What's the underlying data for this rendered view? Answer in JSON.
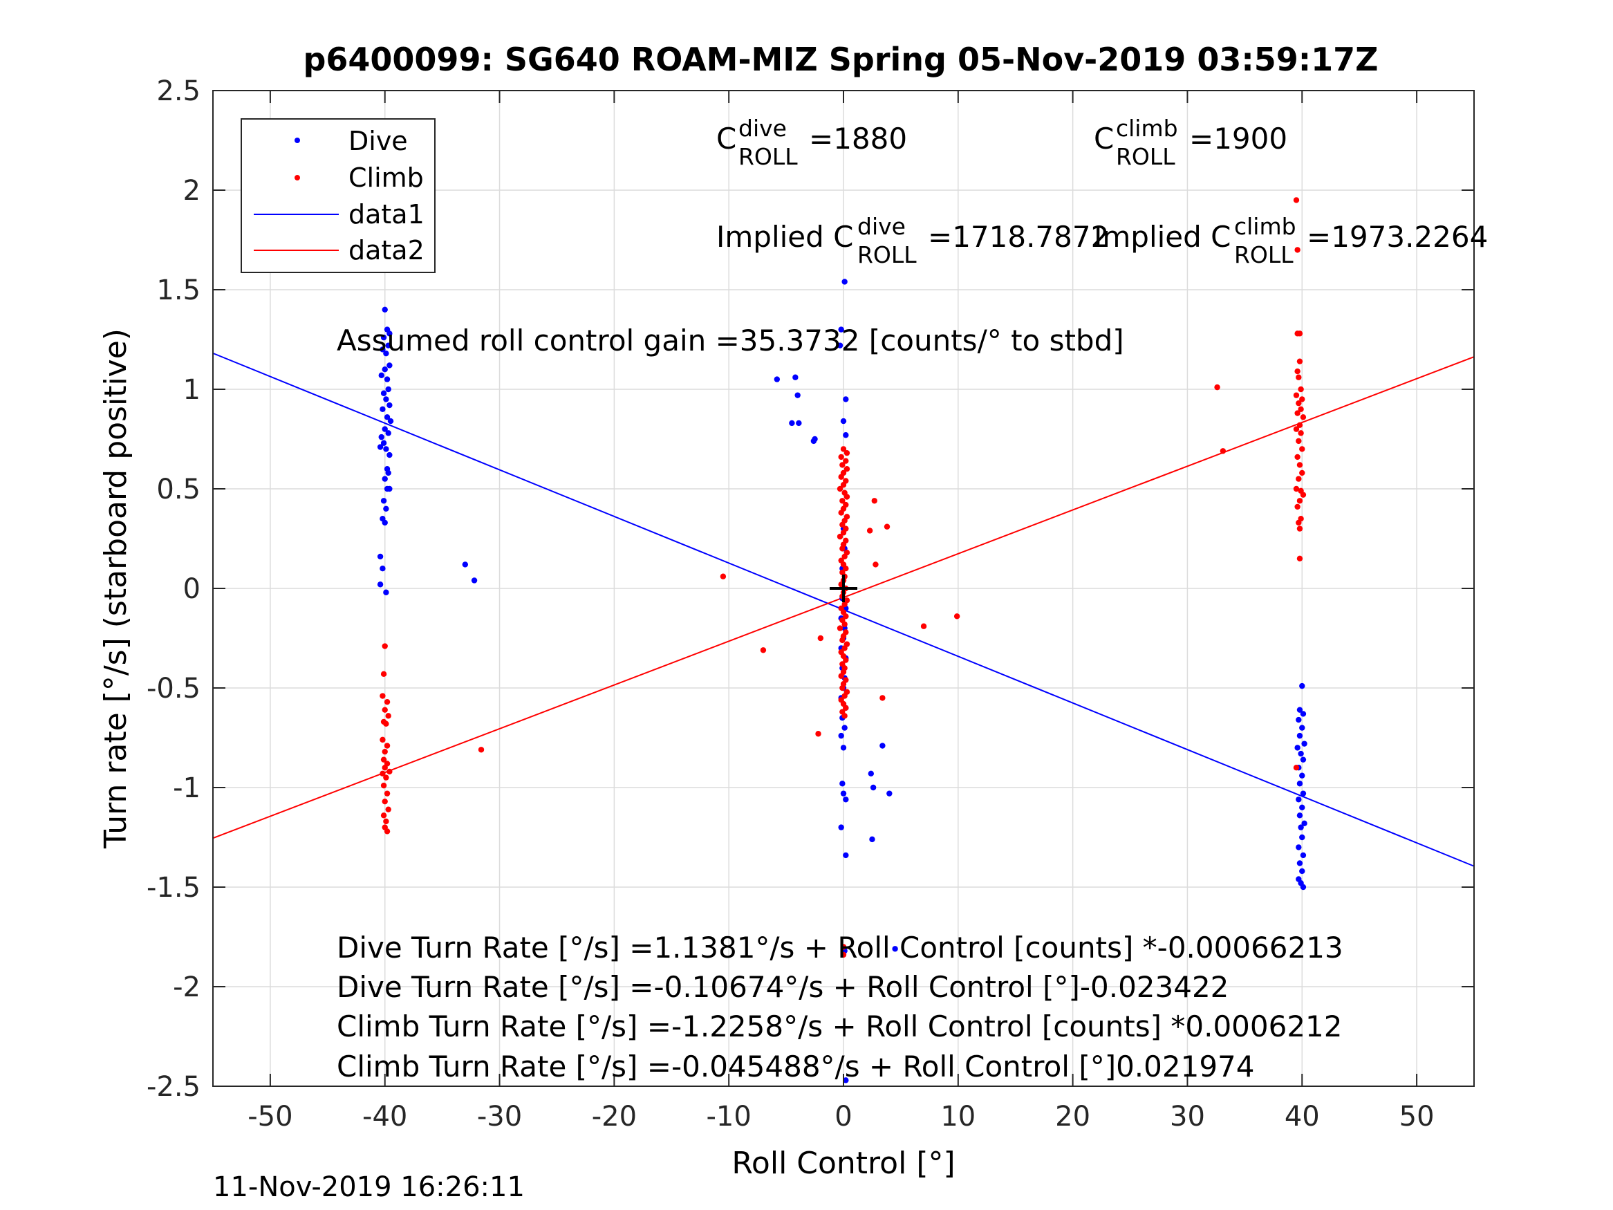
{
  "figure": {
    "title": "p6400099: SG640 ROAM-MIZ Spring 05-Nov-2019 03:59:17Z",
    "timestamp": "11-Nov-2019 16:26:11"
  },
  "annotations": {
    "c_roll_dive": {
      "base": "C",
      "sup": "dive",
      "sub": "ROLL",
      "value": "=1880"
    },
    "c_roll_climb": {
      "base": "C",
      "sup": "climb",
      "sub": "ROLL",
      "value": "=1900"
    },
    "implied_dive": {
      "prefix": "Implied C",
      "sup": "dive",
      "sub": "ROLL",
      "value": "=1718.7872"
    },
    "implied_climb": {
      "prefix": "Implied C",
      "sup": "climb",
      "sub": "ROLL",
      "value": "=1973.2264"
    },
    "gain": "Assumed roll control gain =35.3732 [counts/° to stbd]",
    "eq1": "Dive Turn Rate [°/s] =1.1381°/s + Roll Control [counts] *-0.00066213",
    "eq2": "Dive Turn Rate [°/s] =-0.10674°/s + Roll Control [°]-0.023422",
    "eq3": "Climb Turn Rate [°/s] =-1.2258°/s + Roll Control [counts] *0.0006212",
    "eq4": "Climb Turn Rate [°/s] =-0.045488°/s + Roll Control [°]0.021974"
  },
  "chart_data": {
    "type": "scatter",
    "title": "p6400099: SG640 ROAM-MIZ Spring 05-Nov-2019 03:59:17Z",
    "xlabel": "Roll Control [°]",
    "ylabel": "Turn rate [°/s] (starboard positive)",
    "xlim": [
      -55,
      55
    ],
    "ylim": [
      -2.5,
      2.5
    ],
    "xticks": [
      -50,
      -40,
      -30,
      -20,
      -10,
      0,
      10,
      20,
      30,
      40,
      50
    ],
    "yticks": [
      -2.5,
      -2,
      -1.5,
      -1,
      -0.5,
      0,
      0.5,
      1,
      1.5,
      2,
      2.5
    ],
    "xtick_labels": [
      "-50",
      "-40",
      "-30",
      "-20",
      "-10",
      "0",
      "10",
      "20",
      "30",
      "40",
      "50"
    ],
    "ytick_labels": [
      "-2.5",
      "-2",
      "-1.5",
      "-1",
      "-0.5",
      "0",
      "0.5",
      "1",
      "1.5",
      "2",
      "2.5"
    ],
    "grid": true,
    "legend": {
      "placement": "top-left",
      "entries": [
        "Dive",
        "Climb",
        "data1",
        "data2"
      ]
    },
    "colors": {
      "dive": "#0000ff",
      "climb": "#ff0000",
      "marker": "#000000",
      "grid": "#dcdcdc"
    },
    "center_marker": {
      "x": 0,
      "y": 0,
      "symbol": "+"
    },
    "series": [
      {
        "name": "Dive",
        "kind": "points",
        "color": "#0000ff",
        "points": [
          [
            -40,
            1.4
          ],
          [
            -39.8,
            1.3
          ],
          [
            -39.6,
            1.28
          ],
          [
            -40.1,
            1.26
          ],
          [
            -39.7,
            1.22
          ],
          [
            -40.2,
            1.2
          ],
          [
            -39.9,
            1.18
          ],
          [
            -39.6,
            1.12
          ],
          [
            -40.0,
            1.1
          ],
          [
            -39.8,
            1.05
          ],
          [
            -40.3,
            1.07
          ],
          [
            -39.7,
            1.0
          ],
          [
            -40.1,
            0.98
          ],
          [
            -39.9,
            0.95
          ],
          [
            -39.6,
            0.92
          ],
          [
            -40.2,
            0.9
          ],
          [
            -39.8,
            0.86
          ],
          [
            -39.5,
            0.84
          ],
          [
            -40.0,
            0.8
          ],
          [
            -39.7,
            0.78
          ],
          [
            -40.3,
            0.76
          ],
          [
            -40.1,
            0.73
          ],
          [
            -39.9,
            0.7
          ],
          [
            -40.4,
            0.71
          ],
          [
            -39.6,
            0.67
          ],
          [
            -39.8,
            0.6
          ],
          [
            -39.7,
            0.58
          ],
          [
            -40.0,
            0.55
          ],
          [
            -39.8,
            0.5
          ],
          [
            -39.6,
            0.5
          ],
          [
            -40.1,
            0.44
          ],
          [
            -39.9,
            0.4
          ],
          [
            -40.2,
            0.35
          ],
          [
            -40.0,
            0.33
          ],
          [
            -40.4,
            0.16
          ],
          [
            -40.2,
            0.1
          ],
          [
            -40.4,
            0.02
          ],
          [
            -39.9,
            -0.02
          ],
          [
            -33.0,
            0.12
          ],
          [
            -32.2,
            0.04
          ],
          [
            -5.8,
            1.05
          ],
          [
            -4.2,
            1.06
          ],
          [
            -4.0,
            0.97
          ],
          [
            -4.5,
            0.83
          ],
          [
            -3.9,
            0.83
          ],
          [
            -2.5,
            0.75
          ],
          [
            -2.6,
            0.74
          ],
          [
            -0.3,
            1.22
          ],
          [
            -0.2,
            1.3
          ],
          [
            0.1,
            1.54
          ],
          [
            0.2,
            0.95
          ],
          [
            0.0,
            0.84
          ],
          [
            0.2,
            0.77
          ],
          [
            0.0,
            0.3
          ],
          [
            0.1,
            0.2
          ],
          [
            -0.1,
            0.1
          ],
          [
            0.1,
            0.0
          ],
          [
            -0.1,
            -0.05
          ],
          [
            0.2,
            -0.1
          ],
          [
            -0.2,
            -0.15
          ],
          [
            0.1,
            -0.2
          ],
          [
            0.0,
            -0.25
          ],
          [
            -0.2,
            -0.3
          ],
          [
            0.2,
            -0.35
          ],
          [
            -0.1,
            -0.4
          ],
          [
            0.1,
            -0.45
          ],
          [
            0.0,
            -0.5
          ],
          [
            -0.2,
            -0.55
          ],
          [
            0.2,
            -0.6
          ],
          [
            -0.1,
            -0.65
          ],
          [
            0.1,
            -0.7
          ],
          [
            -0.2,
            -0.74
          ],
          [
            0.0,
            -0.8
          ],
          [
            -0.1,
            -0.98
          ],
          [
            0.0,
            -1.03
          ],
          [
            0.2,
            -1.06
          ],
          [
            -0.2,
            -1.2
          ],
          [
            0.2,
            -1.34
          ],
          [
            0.1,
            -1.82
          ],
          [
            0.2,
            -2.47
          ],
          [
            2.4,
            -0.93
          ],
          [
            2.6,
            -1.0
          ],
          [
            3.4,
            -0.79
          ],
          [
            4.0,
            -1.03
          ],
          [
            2.5,
            -1.26
          ],
          [
            4.5,
            -1.81
          ],
          [
            40.0,
            -0.49
          ],
          [
            39.8,
            -0.61
          ],
          [
            40.1,
            -0.63
          ],
          [
            39.7,
            -0.66
          ],
          [
            40.0,
            -0.7
          ],
          [
            39.8,
            -0.74
          ],
          [
            40.2,
            -0.78
          ],
          [
            39.6,
            -0.8
          ],
          [
            39.9,
            -0.83
          ],
          [
            40.1,
            -0.86
          ],
          [
            39.7,
            -0.9
          ],
          [
            40.0,
            -0.94
          ],
          [
            39.8,
            -0.98
          ],
          [
            40.1,
            -1.03
          ],
          [
            39.7,
            -1.06
          ],
          [
            40.0,
            -1.1
          ],
          [
            39.8,
            -1.14
          ],
          [
            40.2,
            -1.18
          ],
          [
            39.9,
            -1.2
          ],
          [
            40.0,
            -1.25
          ],
          [
            39.7,
            -1.3
          ],
          [
            40.1,
            -1.34
          ],
          [
            39.8,
            -1.38
          ],
          [
            40.0,
            -1.42
          ],
          [
            39.7,
            -1.46
          ],
          [
            39.9,
            -1.48
          ],
          [
            40.1,
            -1.5
          ]
        ]
      },
      {
        "name": "Climb",
        "kind": "points",
        "color": "#ff0000",
        "points": [
          [
            -40.0,
            -0.29
          ],
          [
            -40.1,
            -0.43
          ],
          [
            -40.2,
            -0.54
          ],
          [
            -39.8,
            -0.57
          ],
          [
            -40.0,
            -0.61
          ],
          [
            -39.7,
            -0.64
          ],
          [
            -40.1,
            -0.67
          ],
          [
            -39.9,
            -0.68
          ],
          [
            -40.2,
            -0.76
          ],
          [
            -39.8,
            -0.79
          ],
          [
            -40.0,
            -0.82
          ],
          [
            -40.1,
            -0.86
          ],
          [
            -39.8,
            -0.88
          ],
          [
            -40.0,
            -0.9
          ],
          [
            -39.6,
            -0.92
          ],
          [
            -40.2,
            -0.93
          ],
          [
            -39.9,
            -0.95
          ],
          [
            -40.1,
            -0.99
          ],
          [
            -39.8,
            -1.03
          ],
          [
            -40.0,
            -1.07
          ],
          [
            -39.7,
            -1.11
          ],
          [
            -40.1,
            -1.14
          ],
          [
            -39.9,
            -1.17
          ],
          [
            -40.0,
            -1.2
          ],
          [
            -39.8,
            -1.22
          ],
          [
            -31.6,
            -0.81
          ],
          [
            -10.5,
            0.06
          ],
          [
            -7.0,
            -0.31
          ],
          [
            -2.0,
            -0.25
          ],
          [
            -2.2,
            -0.73
          ],
          [
            0.0,
            -1.8
          ],
          [
            0.0,
            -1.84
          ],
          [
            0.0,
            0.7
          ],
          [
            0.3,
            0.68
          ],
          [
            -0.2,
            0.66
          ],
          [
            0.2,
            0.64
          ],
          [
            -0.1,
            0.62
          ],
          [
            0.3,
            0.6
          ],
          [
            0.0,
            0.58
          ],
          [
            -0.2,
            0.56
          ],
          [
            0.2,
            0.54
          ],
          [
            0.0,
            0.52
          ],
          [
            -0.3,
            0.5
          ],
          [
            0.1,
            0.48
          ],
          [
            0.3,
            0.46
          ],
          [
            -0.1,
            0.44
          ],
          [
            0.2,
            0.42
          ],
          [
            0.0,
            0.4
          ],
          [
            -0.2,
            0.38
          ],
          [
            0.3,
            0.36
          ],
          [
            0.1,
            0.34
          ],
          [
            -0.1,
            0.32
          ],
          [
            0.2,
            0.3
          ],
          [
            0.0,
            0.28
          ],
          [
            -0.3,
            0.26
          ],
          [
            0.2,
            0.24
          ],
          [
            0.0,
            0.22
          ],
          [
            -0.1,
            0.2
          ],
          [
            0.3,
            0.18
          ],
          [
            0.1,
            0.16
          ],
          [
            -0.2,
            0.14
          ],
          [
            0.0,
            0.12
          ],
          [
            0.2,
            0.1
          ],
          [
            -0.1,
            0.08
          ],
          [
            0.1,
            0.06
          ],
          [
            0.0,
            0.04
          ],
          [
            -0.2,
            0.02
          ],
          [
            0.2,
            0.0
          ],
          [
            0.0,
            -0.02
          ],
          [
            -0.1,
            -0.04
          ],
          [
            0.3,
            -0.06
          ],
          [
            0.1,
            -0.08
          ],
          [
            -0.2,
            -0.1
          ],
          [
            0.0,
            -0.12
          ],
          [
            0.2,
            -0.14
          ],
          [
            -0.1,
            -0.16
          ],
          [
            0.1,
            -0.18
          ],
          [
            -0.3,
            -0.2
          ],
          [
            0.2,
            -0.22
          ],
          [
            0.0,
            -0.24
          ],
          [
            -0.1,
            -0.26
          ],
          [
            0.3,
            -0.28
          ],
          [
            0.1,
            -0.3
          ],
          [
            -0.2,
            -0.32
          ],
          [
            0.0,
            -0.34
          ],
          [
            0.2,
            -0.36
          ],
          [
            -0.1,
            -0.38
          ],
          [
            0.1,
            -0.4
          ],
          [
            0.0,
            -0.42
          ],
          [
            -0.2,
            -0.44
          ],
          [
            0.2,
            -0.46
          ],
          [
            0.0,
            -0.48
          ],
          [
            -0.1,
            -0.5
          ],
          [
            0.3,
            -0.52
          ],
          [
            0.1,
            -0.54
          ],
          [
            -0.2,
            -0.56
          ],
          [
            0.0,
            -0.58
          ],
          [
            0.2,
            -0.6
          ],
          [
            -0.1,
            -0.62
          ],
          [
            0.1,
            -0.64
          ],
          [
            2.7,
            0.44
          ],
          [
            2.3,
            0.29
          ],
          [
            3.8,
            0.31
          ],
          [
            2.8,
            0.12
          ],
          [
            7.0,
            -0.19
          ],
          [
            9.9,
            -0.14
          ],
          [
            3.4,
            -0.55
          ],
          [
            32.6,
            1.01
          ],
          [
            33.1,
            0.69
          ],
          [
            39.5,
            1.95
          ],
          [
            39.6,
            1.7
          ],
          [
            39.6,
            1.28
          ],
          [
            39.8,
            1.28
          ],
          [
            39.8,
            1.14
          ],
          [
            39.6,
            1.09
          ],
          [
            39.7,
            1.06
          ],
          [
            39.9,
            1.0
          ],
          [
            39.5,
            0.97
          ],
          [
            40.0,
            0.95
          ],
          [
            39.7,
            0.93
          ],
          [
            39.9,
            0.9
          ],
          [
            39.6,
            0.88
          ],
          [
            40.1,
            0.86
          ],
          [
            39.8,
            0.82
          ],
          [
            39.5,
            0.8
          ],
          [
            39.9,
            0.78
          ],
          [
            39.7,
            0.74
          ],
          [
            40.0,
            0.7
          ],
          [
            39.6,
            0.66
          ],
          [
            39.8,
            0.62
          ],
          [
            40.0,
            0.58
          ],
          [
            39.7,
            0.55
          ],
          [
            39.5,
            0.5
          ],
          [
            39.9,
            0.49
          ],
          [
            40.1,
            0.47
          ],
          [
            39.8,
            0.44
          ],
          [
            39.6,
            0.41
          ],
          [
            39.9,
            0.35
          ],
          [
            39.7,
            0.33
          ],
          [
            39.8,
            0.3
          ],
          [
            39.8,
            0.15
          ],
          [
            39.5,
            -0.9
          ]
        ]
      },
      {
        "name": "data1",
        "kind": "line",
        "color": "#0000ff",
        "x": [
          -55,
          55
        ],
        "y": [
          1.181,
          -1.395
        ]
      },
      {
        "name": "data2",
        "kind": "line",
        "color": "#ff0000",
        "x": [
          -55,
          55
        ],
        "y": [
          -1.254,
          1.163
        ]
      }
    ]
  }
}
